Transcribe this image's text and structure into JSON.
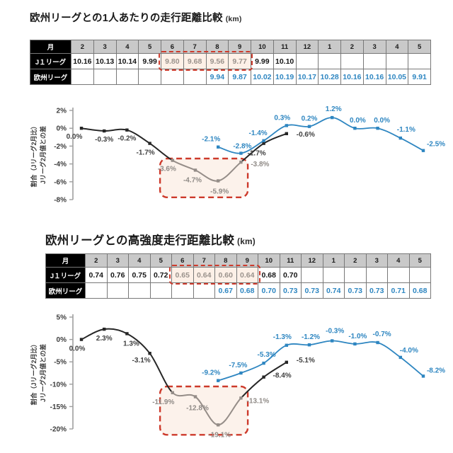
{
  "colors": {
    "blue": "#2e86c1",
    "line_dark": "#262626",
    "line_faded": "#958d88",
    "label_dark": "#404040",
    "label_faded": "#8f8a86",
    "highlight_fill": "#fbece2",
    "highlight_stroke": "#cd3a2b",
    "table_header_bg": "#c9c9c9",
    "table_border": "#787878",
    "side_col_bg": "#000000",
    "axis": "#9f9f9f"
  },
  "sections": [
    {
      "title": "欧州リーグとの1人あたりの走行距離比較",
      "unit": "(km)",
      "table": {
        "corner_label": "月",
        "months": [
          "2",
          "3",
          "4",
          "5",
          "6",
          "7",
          "8",
          "9",
          "10",
          "11",
          "12",
          "1",
          "2",
          "3",
          "4",
          "5"
        ],
        "rows": [
          {
            "label": "J１リーグ",
            "color_key": "dark",
            "values": [
              "10.16",
              "10.13",
              "10.14",
              "9.99",
              "9.80",
              "9.68",
              "9.56",
              "9.77",
              "9.99",
              "10.10",
              "",
              "",
              "",
              "",
              "",
              ""
            ],
            "highlight": [
              4,
              5,
              6,
              7
            ]
          },
          {
            "label": "欧州リーグ",
            "color_key": "blue",
            "values": [
              "",
              "",
              "",
              "",
              "",
              "",
              "9.94",
              "9.87",
              "10.02",
              "10.19",
              "10.17",
              "10.28",
              "10.16",
              "10.16",
              "10.05",
              "9.91"
            ]
          }
        ]
      },
      "chart_data": {
        "type": "line",
        "x_categories": [
          "2",
          "3",
          "4",
          "5",
          "6",
          "7",
          "8",
          "9",
          "10",
          "11",
          "12",
          "1",
          "2",
          "3",
          "4",
          "5"
        ],
        "xlabel": "",
        "ylabel_lines": [
          "割合（Jリーグ2月比）",
          "Jリーグ2月値との差"
        ],
        "ylim": [
          -8,
          2
        ],
        "yticks": [
          2,
          0,
          -2,
          -4,
          -6,
          -8
        ],
        "ytick_labels": [
          "2%",
          "0%",
          "-2%",
          "-4%",
          "-6%",
          "-8%"
        ],
        "grid": false,
        "legend": "none",
        "series": [
          {
            "name": "J1リーグ",
            "color_key": "dark",
            "start_index": 0,
            "label_side": "below",
            "values": [
              0.0,
              -0.3,
              -0.2,
              -1.7,
              -3.6,
              -4.7,
              -5.9,
              -3.8,
              -1.7,
              -0.6
            ],
            "labels": [
              "0.0%",
              "-0.3%",
              "-0.2%",
              "-1.7%",
              "-3.6%",
              "-4.7%",
              "-5.9%",
              "-3.8%",
              "-1.7%",
              "-0.6%"
            ],
            "faded": [
              4,
              5,
              6,
              7
            ],
            "label_offsets": {
              "0": [
                -10,
                0
              ],
              "3": [
                -6,
                1
              ],
              "4": [
                -8,
                0
              ],
              "5": [
                -4,
                2
              ],
              "6": [
                2,
                3
              ],
              "7": [
                27,
                -9
              ],
              "8": [
                -10,
                2
              ],
              "9": [
                27,
                -11
              ]
            }
          },
          {
            "name": "欧州リーグ",
            "color_key": "blue",
            "start_index": 6,
            "label_side": "above",
            "values": [
              -2.1,
              -2.8,
              -1.4,
              0.3,
              0.2,
              1.2,
              0.0,
              0.0,
              -1.1,
              -2.5
            ],
            "labels": [
              "-2.1%",
              "-2.8%",
              "-1.4%",
              "0.3%",
              "0.2%",
              "1.2%",
              "0.0%",
              "0.0%",
              "-1.1%",
              "-2.5%"
            ],
            "label_offsets": {
              "0": [
                -10,
                -1
              ],
              "1": [
                2,
                0
              ],
              "2": [
                -8,
                -1
              ],
              "3": [
                -6,
                -1
              ],
              "4": [
                0,
                -1
              ],
              "5": [
                2,
                -2
              ],
              "6": [
                4,
                -1
              ],
              "7": [
                6,
                -1
              ],
              "8": [
                8,
                -2
              ],
              "9": [
                18,
                1
              ]
            }
          }
        ],
        "highlight_box": {
          "x_from_index": 3.45,
          "x_to_index": 7.3,
          "value_top": -3.4,
          "value_bottom": -7.75
        }
      }
    },
    {
      "title": "欧州リーグとの高強度走行距離比較",
      "unit": "(km)",
      "table": {
        "corner_label": "月",
        "months": [
          "2",
          "3",
          "4",
          "5",
          "6",
          "7",
          "8",
          "9",
          "10",
          "11",
          "12",
          "1",
          "2",
          "3",
          "4",
          "5"
        ],
        "rows": [
          {
            "label": "J１リーグ",
            "color_key": "dark",
            "values": [
              "0.74",
              "0.76",
              "0.75",
              "0.72",
              "0.65",
              "0.64",
              "0.60",
              "0.64",
              "0.68",
              "0.70",
              "",
              "",
              "",
              "",
              "",
              ""
            ],
            "highlight": [
              4,
              5,
              6,
              7
            ]
          },
          {
            "label": "欧州リーグ",
            "color_key": "blue",
            "values": [
              "",
              "",
              "",
              "",
              "",
              "",
              "0.67",
              "0.68",
              "0.70",
              "0.73",
              "0.73",
              "0.74",
              "0.73",
              "0.73",
              "0.71",
              "0.68"
            ]
          }
        ]
      },
      "chart_data": {
        "type": "line",
        "x_categories": [
          "2",
          "3",
          "4",
          "5",
          "6",
          "7",
          "8",
          "9",
          "10",
          "11",
          "12",
          "1",
          "2",
          "3",
          "4",
          "5"
        ],
        "xlabel": "",
        "ylabel_lines": [
          "割合（Jリーグ2月比）",
          "Jリーグ2月値との差"
        ],
        "ylim": [
          -20,
          5
        ],
        "yticks": [
          5,
          0,
          -5,
          -10,
          -15,
          -20
        ],
        "ytick_labels": [
          "5%",
          "0%",
          "-5%",
          "-10%",
          "-15%",
          "-20%"
        ],
        "grid": false,
        "legend": "none",
        "series": [
          {
            "name": "J1リーグ",
            "color_key": "dark",
            "start_index": 0,
            "label_side": "below",
            "values": [
              0.0,
              2.3,
              1.3,
              -3.1,
              -11.9,
              -12.8,
              -19.1,
              -13.1,
              -8.4,
              -5.1
            ],
            "labels": [
              "0.0%",
              "2.3%",
              "1.3%",
              "-3.1%",
              "-11.9%",
              "-12.8%",
              "-19.1%",
              "-13.1%",
              "-8.4%",
              "-5.1%"
            ],
            "faded": [
              4,
              5,
              6,
              7
            ],
            "label_offsets": {
              "0": [
                -6,
                1
              ],
              "1": [
                0,
                1
              ],
              "2": [
                6,
                2
              ],
              "3": [
                -12,
                -2
              ],
              "4": [
                -13,
                1
              ],
              "5": [
                3,
                4
              ],
              "6": [
                2,
                2
              ],
              "7": [
                24,
                -8
              ],
              "8": [
                26,
                -14
              ],
              "9": [
                27,
                -15
              ]
            }
          },
          {
            "name": "欧州リーグ",
            "color_key": "blue",
            "start_index": 6,
            "label_side": "above",
            "values": [
              -9.2,
              -7.5,
              -5.3,
              -1.3,
              -1.2,
              -0.3,
              -1.0,
              -0.7,
              -4.0,
              -8.2
            ],
            "labels": [
              "-9.2%",
              "-7.5%",
              "-5.3%",
              "-1.3%",
              "-1.2%",
              "-0.3%",
              "-1.0%",
              "-0.7%",
              "-4.0%",
              "-8.2%"
            ],
            "label_offsets": {
              "0": [
                -10,
                -1
              ],
              "1": [
                -4,
                -1
              ],
              "2": [
                4,
                -2
              ],
              "3": [
                -6,
                -2
              ],
              "4": [
                2,
                -1
              ],
              "5": [
                4,
                -4
              ],
              "6": [
                4,
                -1
              ],
              "7": [
                6,
                -2
              ],
              "8": [
                12,
                0
              ],
              "9": [
                18,
                2
              ]
            }
          }
        ],
        "highlight_box": {
          "x_from_index": 3.45,
          "x_to_index": 7.3,
          "value_top": -10.5,
          "value_bottom": -21.3
        }
      }
    }
  ]
}
